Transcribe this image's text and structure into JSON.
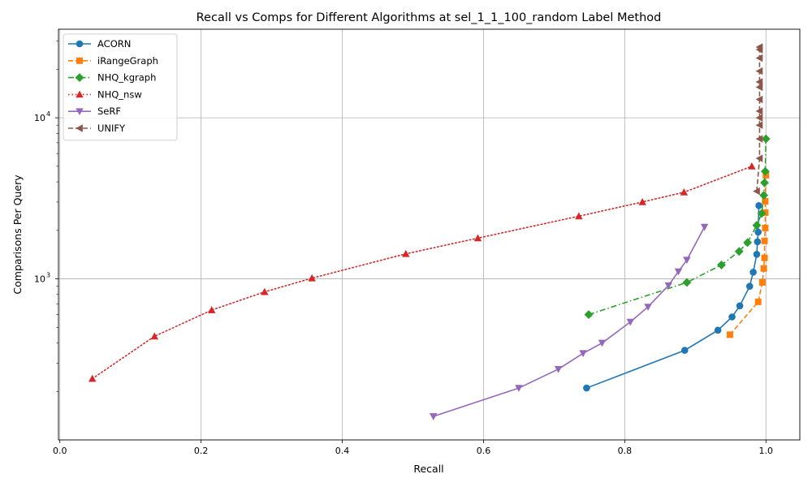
{
  "chart_data": {
    "type": "line",
    "title": "Recall vs Comps for Different Algorithms at sel_1_1_100_random Label Method",
    "xlabel": "Recall",
    "ylabel": "Comparisons Per Query",
    "xlim": [
      -0.002,
      1.048
    ],
    "ylim_log10": [
      2.0,
      4.55
    ],
    "y_scale": "log",
    "grid": true,
    "legend_position": "top-left",
    "x_ticks": [
      0.0,
      0.2,
      0.4,
      0.6,
      0.8,
      1.0
    ],
    "x_tick_labels": [
      "0.0",
      "0.2",
      "0.4",
      "0.6",
      "0.8",
      "1.0"
    ],
    "y_ticks": [
      1000,
      10000
    ],
    "y_tick_label_base": [
      "10",
      "10"
    ],
    "y_tick_label_exp": [
      "3",
      "4"
    ],
    "series": [
      {
        "name": "ACORN",
        "color": "#1f77b4",
        "marker": "circle",
        "linestyle": "solid",
        "x": [
          0.746,
          0.885,
          0.932,
          0.952,
          0.963,
          0.977,
          0.982,
          0.987,
          0.988,
          0.989,
          0.99
        ],
        "y": [
          210,
          360,
          480,
          580,
          680,
          900,
          1100,
          1420,
          1700,
          1950,
          2850
        ]
      },
      {
        "name": "iRangeGraph",
        "color": "#ff7f0e",
        "marker": "square",
        "linestyle": "dashed",
        "x": [
          0.949,
          0.989,
          0.995,
          0.997,
          0.998,
          0.998,
          0.999,
          0.999,
          0.999,
          1.0
        ],
        "y": [
          450,
          720,
          950,
          1160,
          1350,
          1720,
          2070,
          2580,
          3030,
          4400
        ]
      },
      {
        "name": "NHQ_kgraph",
        "color": "#2ca02c",
        "marker": "diamond",
        "linestyle": "dashdot",
        "x": [
          0.749,
          0.888,
          0.937,
          0.962,
          0.974,
          0.987,
          0.994,
          0.997,
          0.998,
          0.999,
          1.0
        ],
        "y": [
          600,
          950,
          1220,
          1480,
          1680,
          2150,
          2550,
          3300,
          3950,
          4650,
          7400
        ]
      },
      {
        "name": "NHQ_nsw",
        "color": "#d62728",
        "marker": "triangle-up",
        "linestyle": "dotted",
        "x": [
          0.046,
          0.134,
          0.215,
          0.29,
          0.357,
          0.49,
          0.592,
          0.735,
          0.825,
          0.884,
          0.98
        ],
        "y": [
          240,
          440,
          640,
          830,
          1010,
          1430,
          1790,
          2450,
          3000,
          3450,
          5000
        ]
      },
      {
        "name": "SeRF",
        "color": "#9467bd",
        "marker": "triangle-down",
        "linestyle": "solid",
        "x": [
          0.529,
          0.65,
          0.706,
          0.741,
          0.768,
          0.808,
          0.833,
          0.862,
          0.876,
          0.888,
          0.913
        ],
        "y": [
          140,
          210,
          275,
          345,
          400,
          540,
          670,
          910,
          1110,
          1310,
          2100
        ]
      },
      {
        "name": "UNIFY",
        "color": "#8c564b",
        "marker": "triangle-left",
        "linestyle": "dashed",
        "x": [
          0.987,
          0.991,
          0.991,
          0.991,
          0.991,
          0.991,
          0.991,
          0.991,
          0.991,
          0.991,
          0.991,
          0.991,
          0.991
        ],
        "y": [
          3500,
          5600,
          7400,
          9000,
          10000,
          11000,
          13000,
          15500,
          16700,
          19500,
          23500,
          26500,
          27500
        ]
      }
    ]
  }
}
